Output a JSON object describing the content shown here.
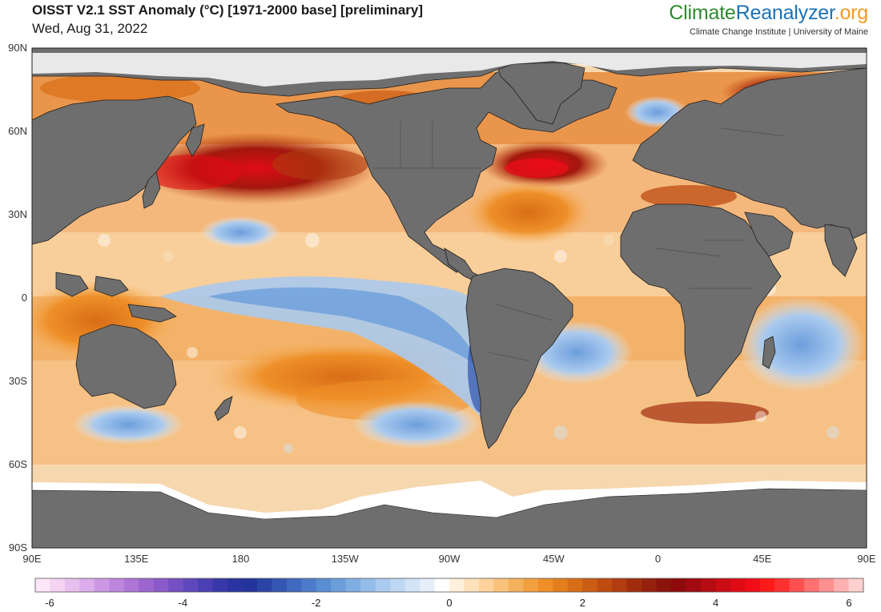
{
  "header": {
    "title": "OISST V2.1 SST Anomaly (°C) [1971-2000 base] [preliminary]",
    "date": "Wed, Aug 31, 2022"
  },
  "brand": {
    "part1": "Climate",
    "part2": "Reanalyzer",
    "part3": ".org",
    "subtitle": "Climate Change Institute | University of Maine"
  },
  "map": {
    "lat_labels": [
      "90N",
      "60N",
      "30N",
      "0",
      "30S",
      "60S",
      "90S"
    ],
    "lon_labels": [
      "90E",
      "135E",
      "180",
      "135W",
      "90W",
      "45W",
      "0",
      "45E",
      "90E"
    ],
    "colors": {
      "land": "#6e6e6e",
      "ice": "#ffffff",
      "border": "#1e1e1e"
    }
  },
  "colorbar": {
    "tick_labels": [
      "-6",
      "-4",
      "-2",
      "0",
      "2",
      "4",
      "6"
    ],
    "colors": [
      "#fce6f7",
      "#f4d4f2",
      "#e8c0ef",
      "#dcadea",
      "#cc98e5",
      "#bd86de",
      "#ae75d6",
      "#9d66ce",
      "#8a5ac8",
      "#7450c2",
      "#5e48bb",
      "#4a40b3",
      "#3838a9",
      "#2a34a0",
      "#23359a",
      "#2a44a5",
      "#3557b2",
      "#4069bf",
      "#4d7bc9",
      "#5a8ed3",
      "#6c9edc",
      "#80aee3",
      "#95bde9",
      "#aacaee",
      "#bed7f2",
      "#d2e3f6",
      "#e5eff9",
      "#ffffff",
      "#fff1dc",
      "#ffe2bc",
      "#ffd39b",
      "#fbc27c",
      "#f6b15d",
      "#f2a03e",
      "#ee8f28",
      "#e47e1c",
      "#d86d17",
      "#cb5c13",
      "#be4c11",
      "#b03c0f",
      "#a22d0e",
      "#95200d",
      "#8a130c",
      "#8e0a0c",
      "#a00a10",
      "#b50b13",
      "#ca0c15",
      "#df0c16",
      "#f00d18",
      "#ff1a1a",
      "#ff3030",
      "#ff5050",
      "#ff7070",
      "#ff9090",
      "#ffb0b0",
      "#ffd0d0"
    ]
  }
}
